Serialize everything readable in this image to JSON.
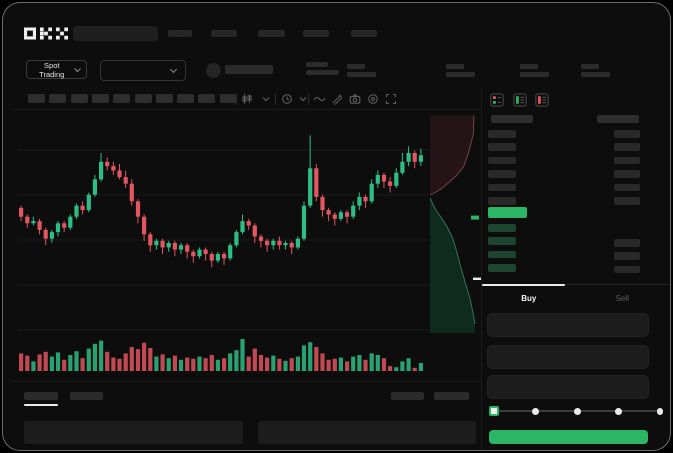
{
  "brand": {
    "logo_text": "OKX"
  },
  "topnav": {
    "search_placeholder": "",
    "nav_placeholders": [
      [
        0,
        24
      ],
      [
        43,
        26
      ],
      [
        90,
        27
      ],
      [
        135,
        26
      ],
      [
        183,
        26
      ]
    ]
  },
  "market_bar": {
    "market_selector_label": "Spot Trading",
    "stat_group_offsets": [
      0,
      99,
      173,
      234
    ]
  },
  "toolbar": {
    "timeframe_placeholder_count": 10,
    "icon_names": [
      "chart-type-candles-icon",
      "chart-style-chevron-icon",
      "interval-clock-icon",
      "interval-chevron-icon",
      "indicators-wave-icon",
      "draw-tools-icon",
      "camera-snapshot-icon",
      "history-clock-icon",
      "fullscreen-expand-icon"
    ]
  },
  "orderbook": {
    "view_modes": [
      "all",
      "bids",
      "asks"
    ],
    "ask_row_count": 6,
    "bid_row_count": 4,
    "bid_amount_row_count": 3
  },
  "trade_panel": {
    "tabs": [
      {
        "label": "Buy",
        "active": true
      },
      {
        "label": "Sell",
        "active": false
      }
    ],
    "input_count": 3,
    "slider": {
      "stops": 5,
      "active_index": 0
    },
    "submit_label": ""
  },
  "bottom_panel": {
    "tab_placeholder_count": 2,
    "action_placeholder_count": 2,
    "table_placeholder_count": 2
  },
  "colors": {
    "app_bg": "#0D0D0D",
    "skeleton": "#2B2B2B",
    "accent_green": "#2BB564",
    "candle_up": "#2EBD85",
    "candle_down": "#E2565F",
    "bid_row_green": "#1D4530",
    "ask_amount_gray": "#292929",
    "grid": "#1C1C1C",
    "depth_ask_fill": "#241317",
    "depth_ask_line": "#7A484E",
    "depth_bid_fill": "#0E2B1E",
    "depth_bid_line": "#3A7A5E"
  },
  "chart_data": {
    "type": "candlestick",
    "title": "",
    "xlabel": "",
    "ylabel": "",
    "axes_labeled": false,
    "grid": true,
    "price_scale": "relative 0-100 (no visible axis labels in mockup)",
    "candles": [
      [
        59,
        55,
        53,
        60
      ],
      [
        55,
        52,
        50,
        56
      ],
      [
        52,
        53,
        51,
        55
      ],
      [
        53,
        49,
        47,
        54
      ],
      [
        49,
        45,
        42,
        50
      ],
      [
        45,
        48,
        43,
        49
      ],
      [
        48,
        52,
        46,
        53
      ],
      [
        52,
        50,
        48,
        53
      ],
      [
        50,
        55,
        49,
        56
      ],
      [
        55,
        60,
        54,
        61
      ],
      [
        60,
        58,
        56,
        62
      ],
      [
        58,
        65,
        57,
        66
      ],
      [
        65,
        72,
        64,
        74
      ],
      [
        72,
        80,
        71,
        84
      ],
      [
        80,
        78,
        76,
        82
      ],
      [
        78,
        76,
        74,
        80
      ],
      [
        76,
        73,
        72,
        79
      ],
      [
        73,
        70,
        68,
        76
      ],
      [
        70,
        62,
        60,
        72
      ],
      [
        62,
        55,
        52,
        63
      ],
      [
        55,
        47,
        44,
        56
      ],
      [
        47,
        42,
        39,
        48
      ],
      [
        42,
        44,
        40,
        45
      ],
      [
        44,
        41,
        38,
        45
      ],
      [
        41,
        43,
        39,
        44
      ],
      [
        43,
        40,
        37,
        44
      ],
      [
        40,
        42,
        38,
        43
      ],
      [
        42,
        39,
        36,
        43
      ],
      [
        39,
        37,
        34,
        40
      ],
      [
        37,
        40,
        36,
        41
      ],
      [
        40,
        38,
        35,
        41
      ],
      [
        38,
        35,
        32,
        39
      ],
      [
        35,
        38,
        34,
        39
      ],
      [
        38,
        36,
        33,
        39
      ],
      [
        36,
        42,
        35,
        43
      ],
      [
        42,
        48,
        41,
        49
      ],
      [
        48,
        53,
        47,
        56
      ],
      [
        53,
        51,
        49,
        54
      ],
      [
        51,
        46,
        43,
        52
      ],
      [
        46,
        44,
        41,
        47
      ],
      [
        44,
        42,
        39,
        45
      ],
      [
        42,
        44,
        40,
        45
      ],
      [
        44,
        42,
        40,
        46
      ],
      [
        42,
        43,
        40,
        44
      ],
      [
        43,
        41,
        38,
        44
      ],
      [
        41,
        45,
        40,
        46
      ],
      [
        45,
        60,
        44,
        62
      ],
      [
        60,
        77,
        59,
        92
      ],
      [
        77,
        64,
        62,
        79
      ],
      [
        64,
        58,
        55,
        65
      ],
      [
        58,
        56,
        53,
        59
      ],
      [
        56,
        54,
        51,
        57
      ],
      [
        54,
        57,
        53,
        58
      ],
      [
        57,
        55,
        52,
        58
      ],
      [
        55,
        60,
        54,
        62
      ],
      [
        60,
        64,
        58,
        66
      ],
      [
        64,
        62,
        59,
        65
      ],
      [
        62,
        70,
        61,
        72
      ],
      [
        70,
        74,
        68,
        76
      ],
      [
        74,
        71,
        68,
        75
      ],
      [
        71,
        69,
        66,
        73
      ],
      [
        69,
        75,
        68,
        77
      ],
      [
        75,
        80,
        74,
        84
      ],
      [
        80,
        84,
        78,
        87
      ],
      [
        84,
        80,
        77,
        85
      ],
      [
        80,
        83,
        78,
        86
      ]
    ],
    "volumes": [
      55,
      48,
      30,
      52,
      60,
      45,
      58,
      35,
      50,
      62,
      40,
      70,
      85,
      95,
      60,
      42,
      38,
      55,
      75,
      68,
      88,
      72,
      45,
      52,
      40,
      48,
      35,
      42,
      38,
      45,
      40,
      50,
      35,
      40,
      55,
      65,
      100,
      45,
      70,
      50,
      42,
      48,
      38,
      32,
      40,
      45,
      80,
      90,
      75,
      55,
      35,
      38,
      42,
      30,
      45,
      50,
      35,
      55,
      50,
      40,
      15,
      12,
      30,
      40,
      10,
      25
    ],
    "depth": {
      "ask_curve": [
        [
          0.86,
          0.02
        ],
        [
          0.85,
          0.1
        ],
        [
          0.8,
          0.15
        ],
        [
          0.74,
          0.2
        ],
        [
          0.66,
          0.25
        ],
        [
          0.52,
          0.29
        ],
        [
          0.38,
          0.32
        ],
        [
          0.22,
          0.35
        ],
        [
          0.08,
          0.37
        ],
        [
          0.0,
          0.378
        ]
      ],
      "bid_curve": [
        [
          0.0,
          0.392
        ],
        [
          0.1,
          0.44
        ],
        [
          0.22,
          0.48
        ],
        [
          0.33,
          0.52
        ],
        [
          0.44,
          0.57
        ],
        [
          0.52,
          0.63
        ],
        [
          0.6,
          0.7
        ],
        [
          0.7,
          0.78
        ],
        [
          0.79,
          0.85
        ],
        [
          0.86,
          0.93
        ],
        [
          0.88,
          0.96
        ]
      ],
      "price_marker_frac": 0.48,
      "last_trade_marker_frac": 0.755
    }
  }
}
